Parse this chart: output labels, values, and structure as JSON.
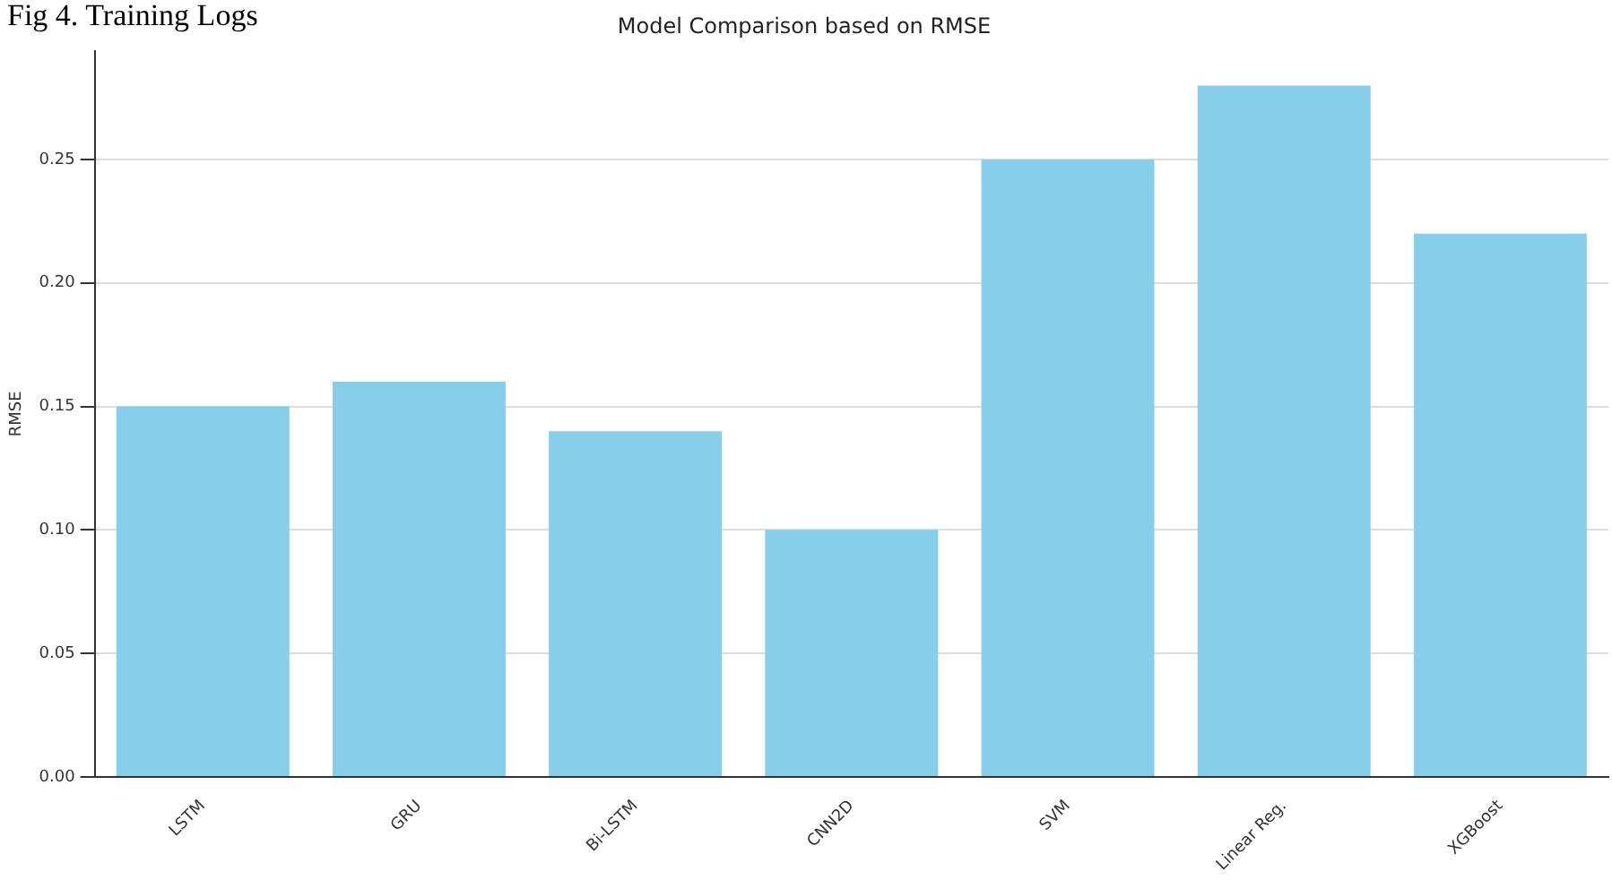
{
  "chart_data": {
    "type": "bar",
    "title": "Model Comparison based on RMSE",
    "ylabel": "RMSE",
    "annotations": [
      "Fig 4. Training Logs"
    ],
    "categories": [
      "LSTM",
      "GRU",
      "Bi-LSTM",
      "CNN2D",
      "SVM",
      "Linear Reg.",
      "XGBoost"
    ],
    "values": [
      0.15,
      0.16,
      0.14,
      0.1,
      0.25,
      0.28,
      0.22
    ],
    "color": "#87ceeb",
    "ylim": [
      0,
      0.294
    ],
    "yticks": [
      {
        "value": 0,
        "label": "0.00"
      },
      {
        "value": 0.05,
        "label": "0.05"
      },
      {
        "value": 0.1,
        "label": "0.10"
      },
      {
        "value": 0.15,
        "label": "0.15"
      },
      {
        "value": 0.2,
        "label": "0.20"
      },
      {
        "value": 0.25,
        "label": "0.25"
      }
    ],
    "grid": "y"
  }
}
